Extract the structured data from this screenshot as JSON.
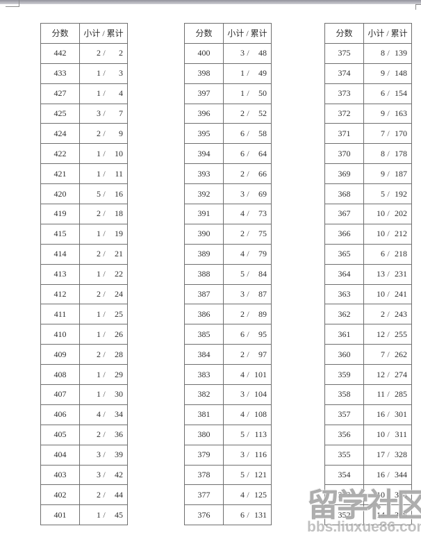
{
  "page": {
    "background": "#ffffff",
    "top_bar_color": "#a9a9b2",
    "border_color": "#6e6e6e"
  },
  "row_separator": "/",
  "columns": [
    "score",
    "subtotal",
    "cumulative"
  ],
  "tables": [
    {
      "headers": {
        "score": "分数",
        "detail": "小计 / 累计"
      },
      "rows": [
        [
          "442",
          "2",
          "2"
        ],
        [
          "433",
          "1",
          "3"
        ],
        [
          "427",
          "1",
          "4"
        ],
        [
          "425",
          "3",
          "7"
        ],
        [
          "424",
          "2",
          "9"
        ],
        [
          "422",
          "1",
          "10"
        ],
        [
          "421",
          "1",
          "11"
        ],
        [
          "420",
          "5",
          "16"
        ],
        [
          "419",
          "2",
          "18"
        ],
        [
          "415",
          "1",
          "19"
        ],
        [
          "414",
          "2",
          "21"
        ],
        [
          "413",
          "1",
          "22"
        ],
        [
          "412",
          "2",
          "24"
        ],
        [
          "411",
          "1",
          "25"
        ],
        [
          "410",
          "1",
          "26"
        ],
        [
          "409",
          "2",
          "28"
        ],
        [
          "408",
          "1",
          "29"
        ],
        [
          "407",
          "1",
          "30"
        ],
        [
          "406",
          "4",
          "34"
        ],
        [
          "405",
          "2",
          "36"
        ],
        [
          "404",
          "3",
          "39"
        ],
        [
          "403",
          "3",
          "42"
        ],
        [
          "402",
          "2",
          "44"
        ],
        [
          "401",
          "1",
          "45"
        ]
      ]
    },
    {
      "headers": {
        "score": "分数",
        "detail": "小计 / 累计"
      },
      "rows": [
        [
          "400",
          "3",
          "48"
        ],
        [
          "398",
          "1",
          "49"
        ],
        [
          "397",
          "1",
          "50"
        ],
        [
          "396",
          "2",
          "52"
        ],
        [
          "395",
          "6",
          "58"
        ],
        [
          "394",
          "6",
          "64"
        ],
        [
          "393",
          "2",
          "66"
        ],
        [
          "392",
          "3",
          "69"
        ],
        [
          "391",
          "4",
          "73"
        ],
        [
          "390",
          "2",
          "75"
        ],
        [
          "389",
          "4",
          "79"
        ],
        [
          "388",
          "5",
          "84"
        ],
        [
          "387",
          "3",
          "87"
        ],
        [
          "386",
          "2",
          "89"
        ],
        [
          "385",
          "6",
          "95"
        ],
        [
          "384",
          "2",
          "97"
        ],
        [
          "383",
          "4",
          "101"
        ],
        [
          "382",
          "3",
          "104"
        ],
        [
          "381",
          "4",
          "108"
        ],
        [
          "380",
          "5",
          "113"
        ],
        [
          "379",
          "3",
          "116"
        ],
        [
          "378",
          "5",
          "121"
        ],
        [
          "377",
          "4",
          "125"
        ],
        [
          "376",
          "6",
          "131"
        ]
      ]
    },
    {
      "headers": {
        "score": "分数",
        "detail": "小计 / 累计"
      },
      "rows": [
        [
          "375",
          "8",
          "139"
        ],
        [
          "374",
          "9",
          "148"
        ],
        [
          "373",
          "6",
          "154"
        ],
        [
          "372",
          "9",
          "163"
        ],
        [
          "371",
          "7",
          "170"
        ],
        [
          "370",
          "8",
          "178"
        ],
        [
          "369",
          "9",
          "187"
        ],
        [
          "368",
          "5",
          "192"
        ],
        [
          "367",
          "10",
          "202"
        ],
        [
          "366",
          "10",
          "212"
        ],
        [
          "365",
          "6",
          "218"
        ],
        [
          "364",
          "13",
          "231"
        ],
        [
          "363",
          "10",
          "241"
        ],
        [
          "362",
          "2",
          "243"
        ],
        [
          "361",
          "12",
          "255"
        ],
        [
          "360",
          "7",
          "262"
        ],
        [
          "359",
          "12",
          "274"
        ],
        [
          "358",
          "11",
          "285"
        ],
        [
          "357",
          "16",
          "301"
        ],
        [
          "356",
          "10",
          "311"
        ],
        [
          "355",
          "17",
          "328"
        ],
        [
          "354",
          "16",
          "344"
        ],
        [
          "353",
          "10",
          "354"
        ],
        [
          "352",
          "14",
          "368"
        ]
      ]
    }
  ],
  "watermark": {
    "logo_text": "留学社区",
    "site_text": "bbs.liuxue86.com"
  }
}
